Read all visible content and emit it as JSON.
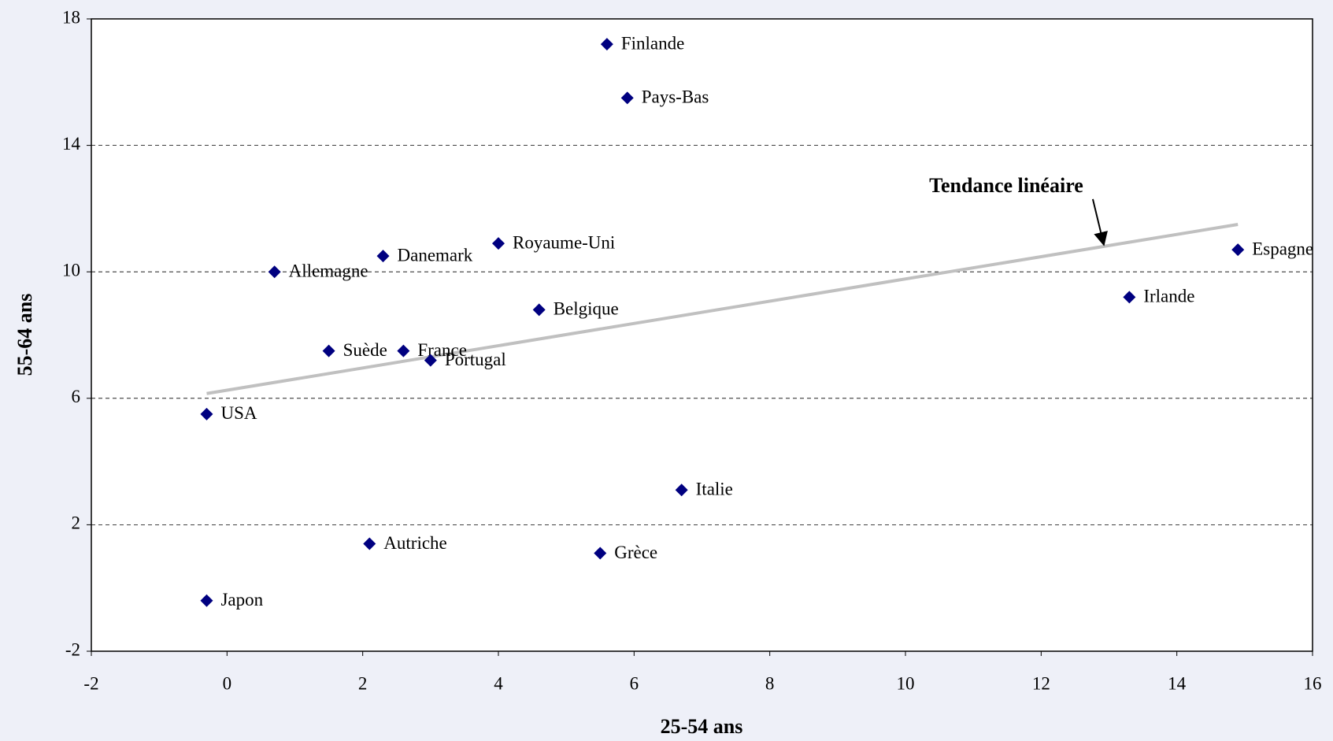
{
  "chart_data": {
    "type": "scatter",
    "x_label": "25-54 ans",
    "y_label": "55-64 ans",
    "labels": [
      "Finlande",
      "Pays-Bas",
      "Royaume-Uni",
      "Danemark",
      "Allemagne",
      "Belgique",
      "Suède",
      "France",
      "Portugal",
      "USA",
      "Italie",
      "Autriche",
      "Grèce",
      "Japon",
      "Irlande",
      "Espagne"
    ],
    "x": [
      5.6,
      5.9,
      4.0,
      2.3,
      0.7,
      4.6,
      1.5,
      2.6,
      3.0,
      -0.3,
      6.7,
      2.1,
      5.5,
      -0.3,
      13.3,
      14.9
    ],
    "values": [
      17.2,
      15.5,
      10.9,
      10.5,
      10.0,
      8.8,
      7.5,
      7.5,
      7.2,
      5.5,
      3.1,
      1.4,
      1.1,
      -0.4,
      9.2,
      10.7
    ],
    "color": "#000080",
    "trend": {
      "name": "Tendance linéaire",
      "x": [
        -0.3,
        14.9
      ],
      "values": [
        6.15,
        11.5
      ],
      "color": "#c0c0c0"
    },
    "xlim": [
      -2,
      16
    ],
    "xticks": [
      -2,
      0,
      2,
      4,
      6,
      8,
      10,
      12,
      14,
      16
    ],
    "ylim": [
      -2,
      18
    ],
    "yticks": [
      -2,
      2,
      6,
      10,
      14,
      18
    ],
    "grid": true
  }
}
